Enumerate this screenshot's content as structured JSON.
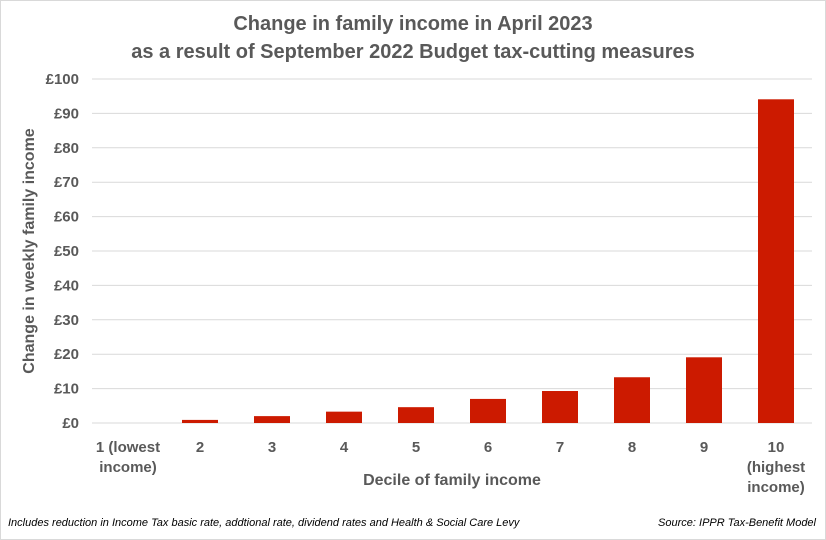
{
  "chart_data": {
    "type": "bar",
    "title_lines": [
      "Change in family income in April 2023",
      "as a result of September 2022 Budget tax-cutting measures"
    ],
    "xlabel": "Decile of family income",
    "ylabel": "Change in weekly family income",
    "categories": [
      [
        "1 (lowest",
        "income)"
      ],
      [
        "2"
      ],
      [
        "3"
      ],
      [
        "4"
      ],
      [
        "5"
      ],
      [
        "6"
      ],
      [
        "7"
      ],
      [
        "8"
      ],
      [
        "9"
      ],
      [
        "10",
        "(highest",
        "income)"
      ]
    ],
    "values": [
      0,
      0.9,
      2.0,
      3.3,
      4.6,
      7.0,
      9.3,
      13.3,
      19.1,
      94.1
    ],
    "ylim": [
      0,
      100
    ],
    "yticks": [
      0,
      10,
      20,
      30,
      40,
      50,
      60,
      70,
      80,
      90,
      100
    ],
    "ytick_labels": [
      "£0",
      "£10",
      "£20",
      "£30",
      "£40",
      "£50",
      "£60",
      "£70",
      "£80",
      "£90",
      "£100"
    ],
    "bar_color": "#cc1a00",
    "grid": true,
    "legend": "none"
  },
  "footnote": "Includes reduction in Income Tax basic rate, addtional rate, dividend rates and Health & Social Care Levy",
  "source": "Source: IPPR Tax-Benefit Model"
}
